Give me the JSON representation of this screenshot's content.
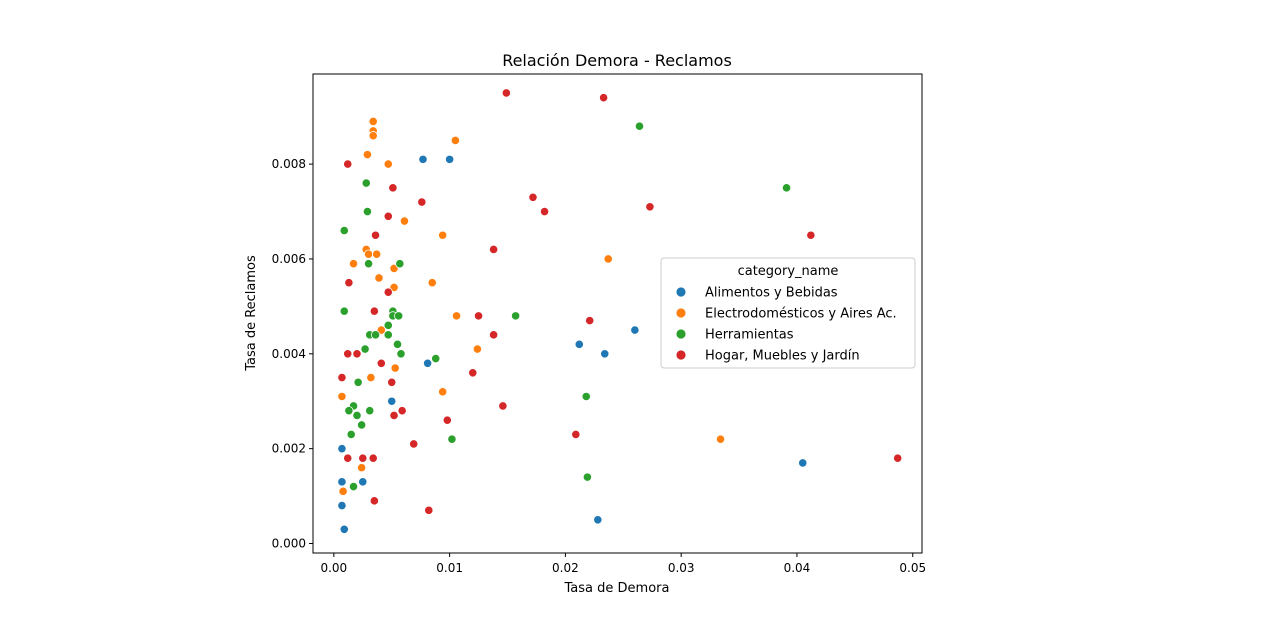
{
  "chart_data": {
    "type": "scatter",
    "title": "Relación Demora - Reclamos",
    "xlabel": "Tasa de Demora",
    "ylabel": "Tasa de Reclamos",
    "xlim": [
      -0.0018,
      0.0508
    ],
    "ylim": [
      -0.0002,
      0.0099
    ],
    "xticks": [
      0.0,
      0.01,
      0.02,
      0.03,
      0.04,
      0.05
    ],
    "xtick_labels": [
      "0.00",
      "0.01",
      "0.02",
      "0.03",
      "0.04",
      "0.05"
    ],
    "yticks": [
      0.0,
      0.002,
      0.004,
      0.006,
      0.008
    ],
    "ytick_labels": [
      "0.000",
      "0.002",
      "0.004",
      "0.006",
      "0.008"
    ],
    "grid": false,
    "legend": {
      "title": "category_name",
      "placement": "center-right"
    },
    "series": [
      {
        "name": "Alimentos y Bebidas",
        "color": "#1f77b4",
        "points": [
          [
            0.0077,
            0.0081
          ],
          [
            0.01,
            0.0081
          ],
          [
            0.0081,
            0.0038
          ],
          [
            0.005,
            0.003
          ],
          [
            0.0007,
            0.002
          ],
          [
            0.0007,
            0.0013
          ],
          [
            0.0025,
            0.0013
          ],
          [
            0.0007,
            0.0008
          ],
          [
            0.0009,
            0.0003
          ],
          [
            0.0212,
            0.0042
          ],
          [
            0.0234,
            0.004
          ],
          [
            0.026,
            0.0045
          ],
          [
            0.0228,
            0.0005
          ],
          [
            0.0405,
            0.0017
          ]
        ]
      },
      {
        "name": "Electrodomésticos y Aires Ac.",
        "color": "#ff7f0e",
        "points": [
          [
            0.0034,
            0.0089
          ],
          [
            0.0034,
            0.0087
          ],
          [
            0.0034,
            0.0086
          ],
          [
            0.0029,
            0.0082
          ],
          [
            0.0047,
            0.008
          ],
          [
            0.0105,
            0.0085
          ],
          [
            0.0061,
            0.0068
          ],
          [
            0.0094,
            0.0065
          ],
          [
            0.0028,
            0.0062
          ],
          [
            0.003,
            0.0061
          ],
          [
            0.0037,
            0.0061
          ],
          [
            0.0017,
            0.0059
          ],
          [
            0.0052,
            0.0058
          ],
          [
            0.0039,
            0.0056
          ],
          [
            0.0052,
            0.0054
          ],
          [
            0.0085,
            0.0055
          ],
          [
            0.0106,
            0.0048
          ],
          [
            0.0041,
            0.0045
          ],
          [
            0.0124,
            0.0041
          ],
          [
            0.0053,
            0.0037
          ],
          [
            0.0032,
            0.0035
          ],
          [
            0.0094,
            0.0032
          ],
          [
            0.0007,
            0.0031
          ],
          [
            0.0024,
            0.0016
          ],
          [
            0.0008,
            0.0011
          ],
          [
            0.0237,
            0.006
          ],
          [
            0.0334,
            0.0022
          ]
        ]
      },
      {
        "name": "Herramientas",
        "color": "#2ca02c",
        "points": [
          [
            0.0264,
            0.0088
          ],
          [
            0.0028,
            0.0076
          ],
          [
            0.0029,
            0.007
          ],
          [
            0.0009,
            0.0066
          ],
          [
            0.003,
            0.0059
          ],
          [
            0.0057,
            0.0059
          ],
          [
            0.0009,
            0.0049
          ],
          [
            0.0051,
            0.0049
          ],
          [
            0.0051,
            0.0048
          ],
          [
            0.0056,
            0.0048
          ],
          [
            0.0157,
            0.0048
          ],
          [
            0.0031,
            0.0044
          ],
          [
            0.0036,
            0.0044
          ],
          [
            0.0047,
            0.0044
          ],
          [
            0.0047,
            0.0046
          ],
          [
            0.0055,
            0.0042
          ],
          [
            0.0027,
            0.0041
          ],
          [
            0.0058,
            0.004
          ],
          [
            0.0088,
            0.0039
          ],
          [
            0.0021,
            0.0034
          ],
          [
            0.0017,
            0.0029
          ],
          [
            0.0013,
            0.0028
          ],
          [
            0.0031,
            0.0028
          ],
          [
            0.002,
            0.0027
          ],
          [
            0.0024,
            0.0025
          ],
          [
            0.0015,
            0.0023
          ],
          [
            0.0218,
            0.0031
          ],
          [
            0.0102,
            0.0022
          ],
          [
            0.0017,
            0.0012
          ],
          [
            0.0219,
            0.0014
          ],
          [
            0.0391,
            0.0075
          ]
        ]
      },
      {
        "name": "Hogar, Muebles y Jardín",
        "color": "#d62728",
        "points": [
          [
            0.0149,
            0.0095
          ],
          [
            0.0233,
            0.0094
          ],
          [
            0.0012,
            0.008
          ],
          [
            0.0051,
            0.0075
          ],
          [
            0.0076,
            0.0072
          ],
          [
            0.0172,
            0.0073
          ],
          [
            0.0182,
            0.007
          ],
          [
            0.0273,
            0.0071
          ],
          [
            0.0047,
            0.0069
          ],
          [
            0.0036,
            0.0065
          ],
          [
            0.0138,
            0.0062
          ],
          [
            0.0412,
            0.0065
          ],
          [
            0.0013,
            0.0055
          ],
          [
            0.0047,
            0.0053
          ],
          [
            0.0035,
            0.0049
          ],
          [
            0.0125,
            0.0048
          ],
          [
            0.0221,
            0.0047
          ],
          [
            0.0138,
            0.0044
          ],
          [
            0.0012,
            0.004
          ],
          [
            0.002,
            0.004
          ],
          [
            0.0041,
            0.0038
          ],
          [
            0.0007,
            0.0035
          ],
          [
            0.012,
            0.0036
          ],
          [
            0.005,
            0.0034
          ],
          [
            0.0146,
            0.0029
          ],
          [
            0.0059,
            0.0028
          ],
          [
            0.0052,
            0.0027
          ],
          [
            0.0098,
            0.0026
          ],
          [
            0.0209,
            0.0023
          ],
          [
            0.0069,
            0.0021
          ],
          [
            0.0012,
            0.0018
          ],
          [
            0.0025,
            0.0018
          ],
          [
            0.0034,
            0.0018
          ],
          [
            0.0035,
            0.0009
          ],
          [
            0.0082,
            0.0007
          ],
          [
            0.0487,
            0.0018
          ]
        ]
      }
    ]
  }
}
